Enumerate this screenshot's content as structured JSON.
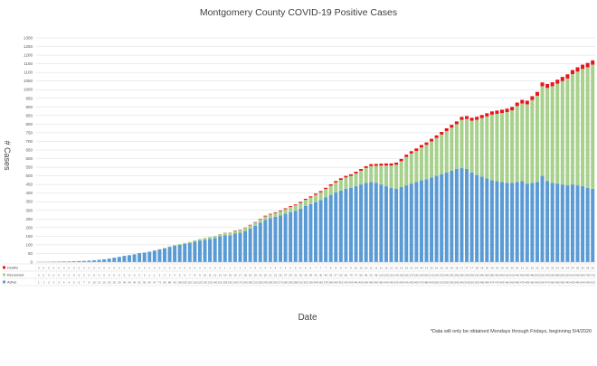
{
  "chart_data": {
    "type": "bar",
    "stacked": true,
    "title": "Montgomery County COVID-19 Positive Cases",
    "xlabel": "Date",
    "ylabel": "# Cases",
    "ylim": [
      0,
      1300
    ],
    "yticks": [
      0,
      50,
      100,
      150,
      200,
      250,
      300,
      350,
      400,
      450,
      500,
      550,
      600,
      650,
      700,
      750,
      800,
      850,
      900,
      950,
      1000,
      1050,
      1100,
      1150,
      1200,
      1250,
      1300
    ],
    "grid": true,
    "footnote": "*Data will only be obtained Mondays through Fridays, beginning 5/4/2020",
    "colors": {
      "Deaths": "#e8141c",
      "Recovered": "#a9d18e",
      "Active": "#5b9bd5"
    },
    "series": [
      {
        "name": "Deaths",
        "values": [
          0,
          0,
          0,
          0,
          0,
          0,
          0,
          0,
          0,
          0,
          0,
          0,
          0,
          0,
          0,
          0,
          0,
          0,
          0,
          0,
          0,
          0,
          0,
          0,
          0,
          0,
          0,
          0,
          0,
          0,
          0,
          0,
          0,
          0,
          0,
          0,
          0,
          1,
          1,
          2,
          2,
          2,
          3,
          3,
          3,
          4,
          4,
          4,
          4,
          5,
          5,
          5,
          6,
          6,
          6,
          7,
          7,
          7,
          8,
          8,
          9,
          9,
          9,
          10,
          10,
          10,
          11,
          11,
          11,
          12,
          12,
          12,
          13,
          13,
          13,
          14,
          14,
          14,
          15,
          15,
          15,
          16,
          16,
          16,
          17,
          17,
          17,
          18,
          18,
          18,
          19,
          19,
          19,
          20,
          20,
          20,
          21,
          21,
          22,
          22,
          22,
          23,
          23,
          23,
          24,
          24,
          24,
          25,
          25,
          25,
          25
        ]
      },
      {
        "name": "Recovered",
        "values": [
          0,
          0,
          0,
          0,
          0,
          0,
          0,
          0,
          0,
          0,
          0,
          0,
          0,
          0,
          0,
          0,
          0,
          0,
          0,
          0,
          0,
          0,
          1,
          1,
          2,
          2,
          3,
          4,
          5,
          6,
          7,
          8,
          9,
          10,
          11,
          12,
          13,
          14,
          15,
          16,
          17,
          18,
          18,
          19,
          20,
          20,
          21,
          22,
          25,
          27,
          29,
          31,
          33,
          36,
          39,
          42,
          45,
          49,
          53,
          57,
          62,
          66,
          70,
          74,
          80,
          86,
          92,
          98,
          110,
          120,
          130,
          140,
          150,
          165,
          175,
          180,
          190,
          200,
          210,
          220,
          230,
          240,
          250,
          260,
          280,
          290,
          300,
          320,
          340,
          360,
          380,
          390,
          400,
          410,
          420,
          440,
          450,
          460,
          480,
          500,
          520,
          540,
          560,
          580,
          600,
          620,
          640,
          660,
          680,
          700,
          720
        ]
      },
      {
        "name": "Active",
        "values": [
          1,
          1,
          2,
          3,
          3,
          4,
          4,
          5,
          6,
          7,
          8,
          10,
          13,
          16,
          20,
          25,
          30,
          36,
          40,
          45,
          52,
          55,
          60,
          67,
          73,
          80,
          88,
          95,
          100,
          105,
          110,
          118,
          125,
          130,
          135,
          140,
          150,
          155,
          155,
          165,
          170,
          180,
          195,
          210,
          228,
          245,
          255,
          263,
          270,
          280,
          290,
          298,
          310,
          325,
          336,
          348,
          360,
          375,
          390,
          405,
          415,
          425,
          430,
          440,
          450,
          460,
          465,
          460,
          450,
          440,
          430,
          425,
          435,
          445,
          455,
          465,
          475,
          480,
          490,
          500,
          510,
          520,
          530,
          540,
          545,
          540,
          520,
          505,
          495,
          485,
          475,
          470,
          465,
          460,
          460,
          465,
          470,
          455,
          460,
          465,
          500,
          470,
          460,
          455,
          450,
          445,
          450,
          445,
          440,
          430,
          425
        ]
      }
    ]
  }
}
